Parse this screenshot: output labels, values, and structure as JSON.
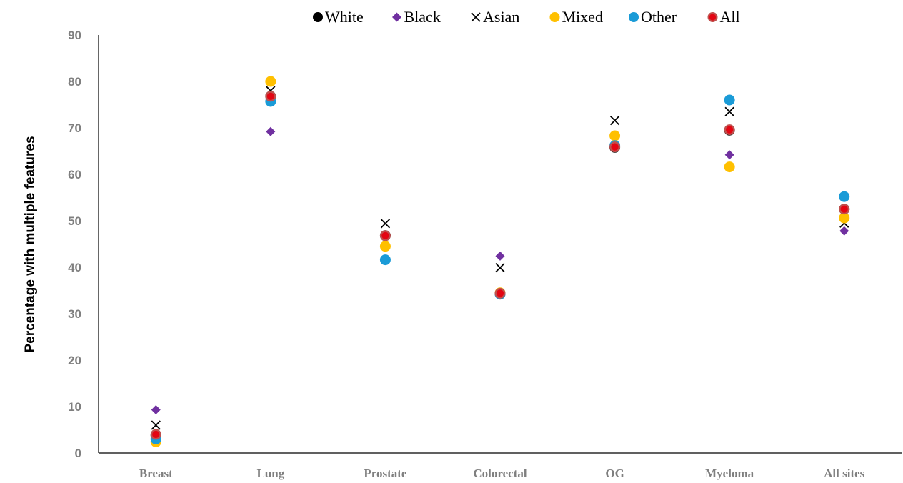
{
  "chart_data": {
    "type": "scatter",
    "title": "",
    "xlabel": "",
    "ylabel": "Percentage with multiple features",
    "ylim": [
      0,
      90
    ],
    "yticks": [
      0,
      10,
      20,
      30,
      40,
      50,
      60,
      70,
      80,
      90
    ],
    "grid": false,
    "legend_position": "top",
    "categories": [
      "Breast",
      "Lung",
      "Prostate",
      "Colorectal",
      "OG",
      "Myeloma",
      "All sites"
    ],
    "series": [
      {
        "name": "White",
        "marker": "circle-black",
        "color": "#000000",
        "values": [
          3.8,
          76.8,
          46.8,
          34.3,
          65.8,
          69.5,
          52.5
        ]
      },
      {
        "name": "Black",
        "marker": "diamond",
        "color": "#7030a0",
        "values": [
          9.3,
          69.2,
          46.8,
          42.4,
          66.0,
          64.2,
          47.8
        ]
      },
      {
        "name": "Asian",
        "marker": "x",
        "color": "#000000",
        "values": [
          6.0,
          78.0,
          49.4,
          39.9,
          71.6,
          73.5,
          49.5
        ]
      },
      {
        "name": "Mixed",
        "marker": "circle",
        "color": "#ffc000",
        "values": [
          2.4,
          80.0,
          44.5,
          34.5,
          68.3,
          61.6,
          50.6
        ]
      },
      {
        "name": "Other",
        "marker": "circle",
        "color": "#1a9bd7",
        "values": [
          3.0,
          75.7,
          41.6,
          34.2,
          66.2,
          76.0,
          55.2
        ]
      },
      {
        "name": "All",
        "marker": "circle-red",
        "color": "#e30613",
        "edge": "#c0504d",
        "values": [
          4.0,
          76.8,
          46.8,
          34.4,
          65.9,
          69.6,
          52.5
        ]
      }
    ]
  }
}
